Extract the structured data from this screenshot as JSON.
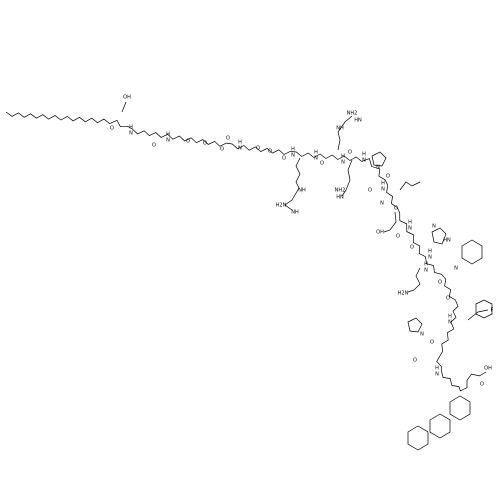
{
  "atoms": [
    "OH",
    "O",
    "H",
    "N",
    "O",
    "H",
    "N",
    "O",
    "O",
    "O",
    "O",
    "H",
    "N",
    "O",
    "O",
    "O",
    "H",
    "N",
    "NH",
    "H2N",
    "NH",
    "O",
    "H",
    "N",
    "NH",
    "NH2",
    "HN",
    "O",
    "H",
    "N",
    "H",
    "N",
    "N",
    "O",
    "NH2",
    "HN",
    "O",
    "H",
    "N",
    "O",
    "N",
    "HN",
    "N",
    "OH",
    "O",
    "H",
    "N",
    "H",
    "N",
    "H2N",
    "O",
    "H",
    "N",
    "O",
    "N",
    "H",
    "N",
    "O",
    "F",
    "O",
    "N",
    "O",
    "H",
    "N",
    "OH",
    "O"
  ]
}
